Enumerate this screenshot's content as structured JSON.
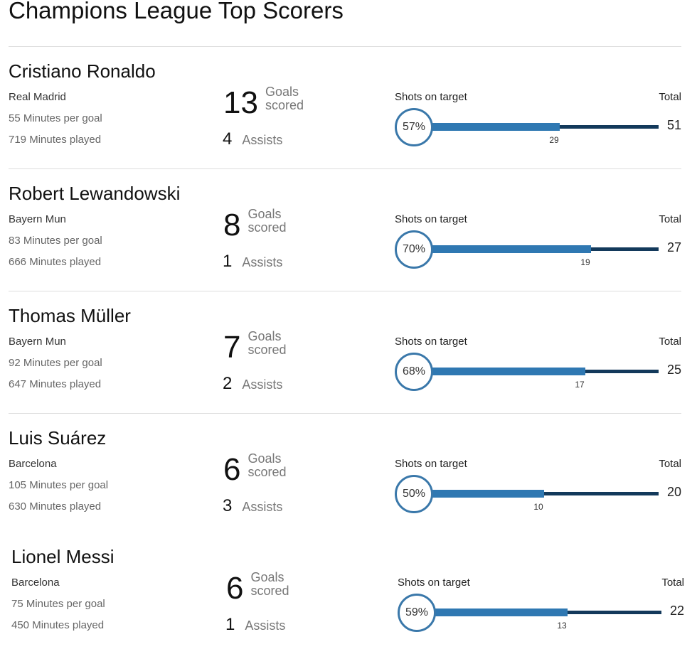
{
  "title": "Champions League Top Scorers",
  "labels": {
    "goals": "Goals scored",
    "assists": "Assists",
    "shots_on_target": "Shots on target",
    "total": "Total",
    "minutes_per_goal": "Minutes per goal",
    "minutes_played": "Minutes played"
  },
  "colors": {
    "on_target_bar": "#2f78b2",
    "total_bar": "#13395b",
    "circle": "#3a78aa"
  },
  "chart_data": {
    "type": "bar",
    "title": "Champions League Top Scorers",
    "players": [
      {
        "name": "Cristiano Ronaldo",
        "team": "Real Madrid",
        "minutes_per_goal": 55,
        "minutes_played": 719,
        "goals": 13,
        "assists": 4,
        "shots_on_target": 29,
        "shots_total": 51,
        "accuracy": "57%"
      },
      {
        "name": "Robert Lewandowski",
        "team": "Bayern Mun",
        "minutes_per_goal": 83,
        "minutes_played": 666,
        "goals": 8,
        "assists": 1,
        "shots_on_target": 19,
        "shots_total": 27,
        "accuracy": "70%"
      },
      {
        "name": "Thomas Müller",
        "team": "Bayern Mun",
        "minutes_per_goal": 92,
        "minutes_played": 647,
        "goals": 7,
        "assists": 2,
        "shots_on_target": 17,
        "shots_total": 25,
        "accuracy": "68%"
      },
      {
        "name": "Luis Suárez",
        "team": "Barcelona",
        "minutes_per_goal": 105,
        "minutes_played": 630,
        "goals": 6,
        "assists": 3,
        "shots_on_target": 10,
        "shots_total": 20,
        "accuracy": "50%"
      },
      {
        "name": "Lionel Messi",
        "team": "Barcelona",
        "minutes_per_goal": 75,
        "minutes_played": 450,
        "goals": 6,
        "assists": 1,
        "shots_on_target": 13,
        "shots_total": 22,
        "accuracy": "59%"
      }
    ]
  }
}
